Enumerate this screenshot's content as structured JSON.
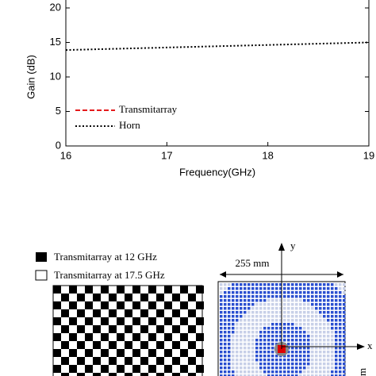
{
  "chart_data": {
    "type": "line",
    "x_label": "Frequency(GHz)",
    "y_label": "Gain (dB)",
    "x": [
      16,
      19
    ],
    "series": [
      {
        "name": "Transmitarray",
        "color": "#e41a1c",
        "dash": "dashed",
        "values": [
          null,
          null
        ]
      },
      {
        "name": "Horn",
        "color": "#000000",
        "dash": "dotted",
        "values": [
          13.9,
          15.0
        ]
      }
    ],
    "xlim": [
      16,
      19
    ],
    "xticks": [
      16,
      17,
      18,
      19
    ],
    "ylim": [
      0,
      20
    ],
    "yticks": [
      0,
      5,
      10,
      15,
      20
    ]
  },
  "legend_items": [
    "Transmitarray at 12 GHz",
    "Transmitarray at 17.5 GHz"
  ],
  "dimension_label": "255 mm",
  "axis_labels": [
    "y",
    "x"
  ],
  "side_label": "mm"
}
